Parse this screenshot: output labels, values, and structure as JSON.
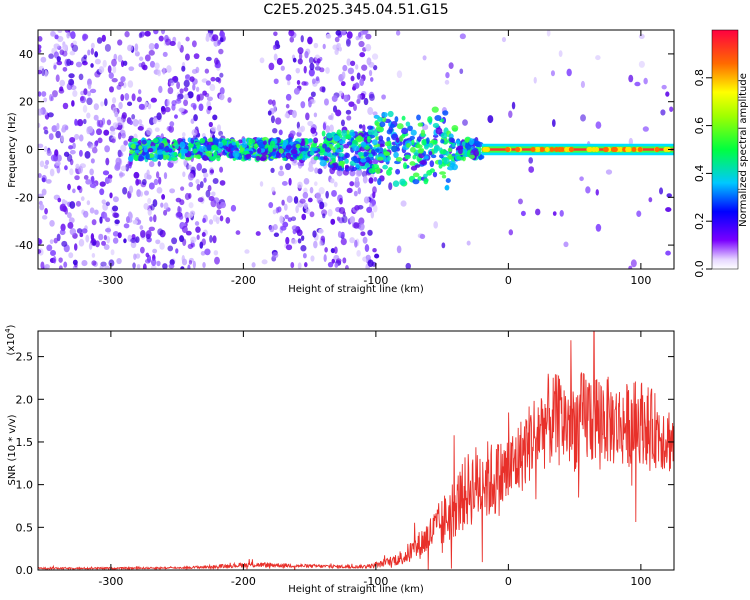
{
  "figure_title": "C2E5.2025.345.04.51.G15",
  "chart_data": [
    {
      "type": "heatmap",
      "title": "C2E5.2025.345.04.51.G15",
      "xlabel": "Height of straight line (km)",
      "ylabel": "Frequency (Hz)",
      "xlim": [
        -355,
        125
      ],
      "ylim": [
        -50,
        50
      ],
      "xticks": [
        -300,
        -200,
        -100,
        0,
        100
      ],
      "xtick_labels": [
        "-300",
        "-200",
        "-100",
        "0",
        "100"
      ],
      "yticks": [
        -40,
        -20,
        0,
        20,
        40
      ],
      "ytick_labels": [
        "-40",
        "-20",
        "0",
        "20",
        "40"
      ],
      "colorbar": {
        "label": "Normalized spectral amplitude",
        "range": [
          0,
          1
        ],
        "ticks": [
          0.0,
          0.2,
          0.4,
          0.6,
          0.8
        ],
        "tick_labels": [
          "0.0",
          "0.2",
          "0.4",
          "0.6",
          "0.8"
        ],
        "colormap": "violet-blue-cyan-green-yellow-red"
      },
      "features": {
        "noise_bands": [
          [
            -355,
            -215
          ],
          [
            -180,
            -130
          ],
          [
            -135,
            -100
          ]
        ],
        "signal_center_hz": 0,
        "band_halfwidth_start_hz": 4,
        "strong_line_start_km": -20
      }
    },
    {
      "type": "line",
      "xlabel": "Height of straight line (km)",
      "ylabel": "SNR (10 * v/v)",
      "y_scale_label": "(x10",
      "y_scale_exp": "4",
      "xlim": [
        -355,
        125
      ],
      "ylim": [
        0,
        2.8
      ],
      "xticks": [
        -300,
        -200,
        -100,
        0,
        100
      ],
      "xtick_labels": [
        "-300",
        "-200",
        "-100",
        "0",
        "100"
      ],
      "yticks": [
        0.0,
        0.5,
        1.0,
        1.5,
        2.0,
        2.5
      ],
      "ytick_labels": [
        "0.0",
        "0.5",
        "1.0",
        "1.5",
        "2.0",
        "2.5"
      ],
      "line_color": "#e8302a",
      "series": [
        {
          "name": "SNR",
          "x": [
            -355,
            -300,
            -250,
            -220,
            -200,
            -180,
            -160,
            -130,
            -110,
            -100,
            -90,
            -80,
            -70,
            -60,
            -50,
            -40,
            -30,
            -20,
            -10,
            0,
            10,
            20,
            30,
            40,
            50,
            60,
            70,
            80,
            90,
            100,
            110,
            125
          ],
          "y": [
            0.02,
            0.02,
            0.025,
            0.04,
            0.06,
            0.06,
            0.05,
            0.04,
            0.04,
            0.05,
            0.1,
            0.15,
            0.25,
            0.4,
            0.55,
            0.75,
            0.95,
            1.05,
            1.05,
            1.15,
            1.35,
            1.6,
            1.75,
            1.75,
            1.7,
            1.8,
            1.8,
            1.7,
            1.7,
            1.75,
            1.65,
            1.5
          ],
          "noise_amplitude": [
            0.01,
            0.01,
            0.01,
            0.02,
            0.03,
            0.03,
            0.02,
            0.02,
            0.02,
            0.03,
            0.05,
            0.1,
            0.15,
            0.22,
            0.3,
            0.38,
            0.45,
            0.5,
            0.45,
            0.45,
            0.45,
            0.5,
            0.55,
            0.55,
            0.55,
            0.6,
            0.55,
            0.5,
            0.5,
            0.5,
            0.45,
            0.4
          ]
        }
      ]
    }
  ]
}
